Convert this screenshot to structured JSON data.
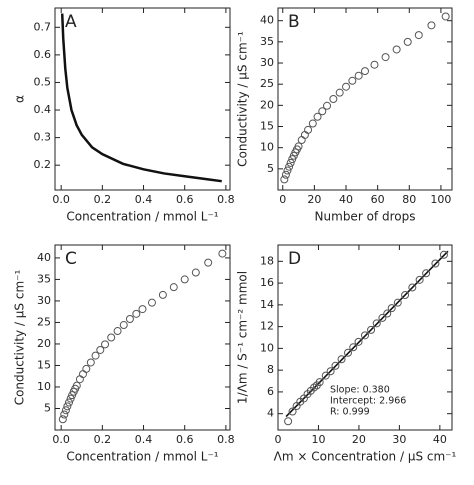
{
  "chart_data": [
    {
      "type": "line",
      "label": "A",
      "xlabel": "Concentration / mmol L⁻¹",
      "ylabel": "α",
      "xlim": [
        -0.03,
        0.82
      ],
      "ylim": [
        0.11,
        0.77
      ],
      "xticks": [
        {
          "value": 0,
          "label": "0.0"
        },
        0.2,
        0.4,
        0.6,
        0.8
      ],
      "yticks": [
        0.2,
        0.3,
        0.4,
        0.5,
        0.6,
        0.7
      ],
      "color": "#111111",
      "x": [
        0.005,
        0.01,
        0.02,
        0.03,
        0.05,
        0.075,
        0.1,
        0.15,
        0.2,
        0.3,
        0.4,
        0.5,
        0.6,
        0.7,
        0.78
      ],
      "values": [
        0.75,
        0.66,
        0.55,
        0.48,
        0.4,
        0.345,
        0.31,
        0.265,
        0.24,
        0.205,
        0.185,
        0.17,
        0.16,
        0.15,
        0.142
      ]
    },
    {
      "type": "scatter",
      "label": "B",
      "xlabel": "Number of drops",
      "ylabel": "Conductivity / μS cm⁻¹",
      "xlim": [
        -3,
        107
      ],
      "ylim": [
        0,
        43
      ],
      "xticks": [
        0,
        20,
        40,
        60,
        80,
        100
      ],
      "yticks": [
        5,
        10,
        15,
        20,
        25,
        30,
        35,
        40
      ],
      "color": "#555555",
      "x": [
        1,
        2,
        3,
        4,
        5,
        6,
        7,
        8,
        9,
        10,
        12,
        14,
        16,
        19,
        22,
        25,
        28,
        32,
        36,
        40,
        44,
        48,
        52,
        58,
        65,
        72,
        79,
        86,
        94,
        103
      ],
      "values": [
        2.5,
        3.6,
        4.6,
        5.5,
        6.4,
        7.3,
        8.1,
        8.9,
        9.6,
        10.3,
        11.8,
        13.0,
        14.2,
        15.7,
        17.3,
        18.6,
        19.9,
        21.5,
        23.0,
        24.4,
        25.8,
        27.0,
        28.1,
        29.6,
        31.4,
        33.2,
        35.0,
        36.6,
        38.9,
        41.0
      ]
    },
    {
      "type": "scatter",
      "label": "C",
      "xlabel": "Concentration / mmol L⁻¹",
      "ylabel": "Conductivity / μS cm⁻¹",
      "xlim": [
        -0.03,
        0.82
      ],
      "ylim": [
        0,
        43
      ],
      "xticks": [
        {
          "value": 0,
          "label": "0.0"
        },
        0.2,
        0.4,
        0.6,
        0.8
      ],
      "yticks": [
        5,
        10,
        15,
        20,
        25,
        30,
        35,
        40
      ],
      "color": "#555555",
      "x": [
        0.008,
        0.015,
        0.023,
        0.03,
        0.038,
        0.046,
        0.053,
        0.061,
        0.068,
        0.076,
        0.091,
        0.106,
        0.122,
        0.144,
        0.167,
        0.19,
        0.213,
        0.243,
        0.274,
        0.304,
        0.334,
        0.365,
        0.395,
        0.441,
        0.494,
        0.547,
        0.6,
        0.654,
        0.714,
        0.783
      ],
      "values": [
        2.5,
        3.6,
        4.6,
        5.5,
        6.4,
        7.3,
        8.1,
        8.9,
        9.6,
        10.3,
        11.8,
        13.0,
        14.2,
        15.7,
        17.3,
        18.6,
        19.9,
        21.5,
        23.0,
        24.4,
        25.8,
        27.0,
        28.1,
        29.6,
        31.4,
        33.2,
        35.0,
        36.6,
        38.9,
        41.0
      ]
    },
    {
      "type": "scatter",
      "label": "D",
      "xlabel": "Λm × Concentration / μS cm⁻¹",
      "ylabel": "1/Λm / S⁻¹ cm⁻² mmol",
      "xlim": [
        0,
        43
      ],
      "ylim": [
        2.5,
        19.5
      ],
      "xticks": [
        0,
        10,
        20,
        30,
        40
      ],
      "yticks": [
        4,
        6,
        8,
        10,
        12,
        14,
        16,
        18
      ],
      "color": "#555555",
      "x": [
        2.5,
        3.6,
        4.6,
        5.5,
        6.4,
        7.3,
        8.1,
        8.9,
        9.6,
        10.3,
        11.8,
        13.0,
        14.2,
        15.7,
        17.3,
        18.6,
        19.9,
        21.5,
        23.0,
        24.4,
        25.8,
        27.0,
        28.1,
        29.6,
        31.4,
        33.2,
        35.0,
        36.6,
        38.9,
        41.0
      ],
      "values": [
        3.3,
        4.2,
        4.7,
        5.1,
        5.4,
        5.8,
        6.1,
        6.4,
        6.6,
        6.9,
        7.5,
        7.9,
        8.4,
        9.0,
        9.6,
        10.1,
        10.6,
        11.2,
        11.7,
        12.3,
        12.8,
        13.2,
        13.7,
        14.2,
        14.9,
        15.6,
        16.3,
        16.9,
        17.8,
        18.6
      ],
      "fit": {
        "color": "#111111",
        "x": [
          2,
          42
        ],
        "values": [
          3.73,
          18.93
        ]
      },
      "annotations": [
        "Slope: 0.380",
        "Intercept: 2.966",
        "R: 0.999"
      ]
    }
  ]
}
